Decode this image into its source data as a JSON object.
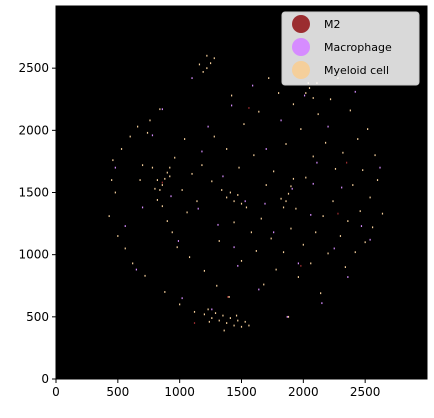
{
  "chart_data": {
    "type": "scatter",
    "title": "",
    "xlabel": "",
    "ylabel": "",
    "xlim": [
      0,
      3000
    ],
    "ylim": [
      0,
      3000
    ],
    "x_ticks": [
      0,
      500,
      1000,
      1500,
      2000,
      2500
    ],
    "y_ticks": [
      0,
      500,
      1000,
      1500,
      2000,
      2500
    ],
    "background_color": "#000000",
    "grid": false,
    "legend_position": "top-right",
    "series": [
      {
        "name": "M2",
        "color": "#9b2d30",
        "points": [
          [
            1120,
            450
          ],
          [
            1980,
            910
          ],
          [
            2280,
            1330
          ],
          [
            1390,
            660
          ],
          [
            860,
            1580
          ],
          [
            1560,
            2180
          ],
          [
            2350,
            1740
          ]
        ]
      },
      {
        "name": "Macrophage",
        "color": "#d68cff",
        "points": [
          [
            480,
            1700
          ],
          [
            560,
            1230
          ],
          [
            650,
            880
          ],
          [
            700,
            1380
          ],
          [
            780,
            1960
          ],
          [
            860,
            2170
          ],
          [
            930,
            1470
          ],
          [
            990,
            1110
          ],
          [
            1020,
            650
          ],
          [
            1100,
            2420
          ],
          [
            1180,
            1830
          ],
          [
            1230,
            2030
          ],
          [
            1260,
            560
          ],
          [
            1310,
            1240
          ],
          [
            1350,
            1630
          ],
          [
            1420,
            2200
          ],
          [
            1470,
            910
          ],
          [
            1530,
            1430
          ],
          [
            1590,
            2360
          ],
          [
            1640,
            720
          ],
          [
            1700,
            1850
          ],
          [
            1760,
            1180
          ],
          [
            1820,
            2080
          ],
          [
            1870,
            500
          ],
          [
            1910,
            1530
          ],
          [
            1960,
            930
          ],
          [
            2010,
            2280
          ],
          [
            2060,
            1320
          ],
          [
            2110,
            1740
          ],
          [
            2150,
            610
          ],
          [
            2200,
            2030
          ],
          [
            2250,
            1050
          ],
          [
            2310,
            1540
          ],
          [
            2360,
            820
          ],
          [
            2420,
            2310
          ],
          [
            2470,
            1230
          ],
          [
            2540,
            1120
          ],
          [
            2620,
            1700
          ],
          [
            1150,
            1370
          ],
          [
            1440,
            1060
          ],
          [
            1690,
            1410
          ],
          [
            2080,
            1570
          ]
        ]
      },
      {
        "name": "Myeloid cell",
        "color": "#f5cf9b",
        "points": [
          [
            430,
            1310
          ],
          [
            450,
            1600
          ],
          [
            460,
            1760
          ],
          [
            480,
            1500
          ],
          [
            500,
            1150
          ],
          [
            530,
            1850
          ],
          [
            560,
            1050
          ],
          [
            600,
            1950
          ],
          [
            620,
            930
          ],
          [
            660,
            2030
          ],
          [
            680,
            1600
          ],
          [
            700,
            1720
          ],
          [
            720,
            830
          ],
          [
            740,
            1980
          ],
          [
            760,
            2080
          ],
          [
            780,
            1700
          ],
          [
            800,
            1530
          ],
          [
            820,
            1440
          ],
          [
            840,
            2170
          ],
          [
            860,
            1390
          ],
          [
            880,
            700
          ],
          [
            900,
            1270
          ],
          [
            920,
            1630
          ],
          [
            940,
            1180
          ],
          [
            960,
            1780
          ],
          [
            980,
            1060
          ],
          [
            1000,
            600
          ],
          [
            1020,
            1520
          ],
          [
            1040,
            1930
          ],
          [
            1060,
            1340
          ],
          [
            1080,
            980
          ],
          [
            1100,
            1650
          ],
          [
            1120,
            540
          ],
          [
            1140,
            1430
          ],
          [
            1160,
            2530
          ],
          [
            1180,
            1720
          ],
          [
            1200,
            870
          ],
          [
            1220,
            2600
          ],
          [
            1240,
            460
          ],
          [
            1260,
            1590
          ],
          [
            1280,
            1950
          ],
          [
            1300,
            750
          ],
          [
            1320,
            1110
          ],
          [
            1340,
            1520
          ],
          [
            1360,
            390
          ],
          [
            1380,
            1850
          ],
          [
            1400,
            660
          ],
          [
            1420,
            2280
          ],
          [
            1440,
            1260
          ],
          [
            1460,
            510
          ],
          [
            1480,
            1700
          ],
          [
            1500,
            950
          ],
          [
            1520,
            2050
          ],
          [
            1540,
            1380
          ],
          [
            1560,
            430
          ],
          [
            1580,
            1180
          ],
          [
            1600,
            1800
          ],
          [
            1620,
            1030
          ],
          [
            1640,
            2150
          ],
          [
            1660,
            1290
          ],
          [
            1680,
            760
          ],
          [
            1700,
            1560
          ],
          [
            1720,
            2420
          ],
          [
            1740,
            1130
          ],
          [
            1760,
            1670
          ],
          [
            1780,
            880
          ],
          [
            1800,
            2300
          ],
          [
            1820,
            1450
          ],
          [
            1840,
            1020
          ],
          [
            1860,
            1890
          ],
          [
            1880,
            500
          ],
          [
            1900,
            1210
          ],
          [
            1920,
            2210
          ],
          [
            1940,
            1370
          ],
          [
            1960,
            820
          ],
          [
            1980,
            2010
          ],
          [
            2000,
            1080
          ],
          [
            2020,
            1620
          ],
          [
            2040,
            2380
          ],
          [
            2060,
            930
          ],
          [
            2080,
            1790
          ],
          [
            2100,
            1180
          ],
          [
            2120,
            2130
          ],
          [
            2140,
            690
          ],
          [
            2160,
            1310
          ],
          [
            2180,
            1900
          ],
          [
            2200,
            1010
          ],
          [
            2220,
            2250
          ],
          [
            2240,
            1430
          ],
          [
            2260,
            1690
          ],
          [
            2280,
            2420
          ],
          [
            2300,
            1150
          ],
          [
            2320,
            1820
          ],
          [
            2340,
            900
          ],
          [
            2360,
            1270
          ],
          [
            2380,
            2160
          ],
          [
            2400,
            1560
          ],
          [
            2420,
            1020
          ],
          [
            2440,
            1930
          ],
          [
            2460,
            1350
          ],
          [
            2480,
            1680
          ],
          [
            2500,
            1100
          ],
          [
            2520,
            2010
          ],
          [
            2540,
            1460
          ],
          [
            2560,
            1220
          ],
          [
            2580,
            1800
          ],
          [
            2600,
            1600
          ],
          [
            2640,
            1330
          ],
          [
            860,
            1560
          ],
          [
            880,
            1610
          ],
          [
            900,
            1660
          ],
          [
            920,
            1700
          ],
          [
            820,
            1600
          ],
          [
            840,
            1520
          ],
          [
            1200,
            520
          ],
          [
            1230,
            560
          ],
          [
            1260,
            490
          ],
          [
            1290,
            530
          ],
          [
            1320,
            470
          ],
          [
            1350,
            510
          ],
          [
            1380,
            450
          ],
          [
            1410,
            490
          ],
          [
            1440,
            430
          ],
          [
            1470,
            470
          ],
          [
            1500,
            420
          ],
          [
            1530,
            460
          ],
          [
            1380,
            1460
          ],
          [
            1410,
            1500
          ],
          [
            1440,
            1430
          ],
          [
            1470,
            1480
          ],
          [
            1500,
            1410
          ],
          [
            1860,
            1430
          ],
          [
            1880,
            1490
          ],
          [
            1900,
            1550
          ],
          [
            1920,
            1610
          ],
          [
            1840,
            1380
          ],
          [
            1220,
            2500
          ],
          [
            1250,
            2540
          ],
          [
            1280,
            2580
          ],
          [
            1190,
            2470
          ],
          [
            2020,
            2300
          ],
          [
            2050,
            2340
          ],
          [
            2080,
            2260
          ],
          [
            2110,
            2380
          ]
        ]
      }
    ]
  }
}
